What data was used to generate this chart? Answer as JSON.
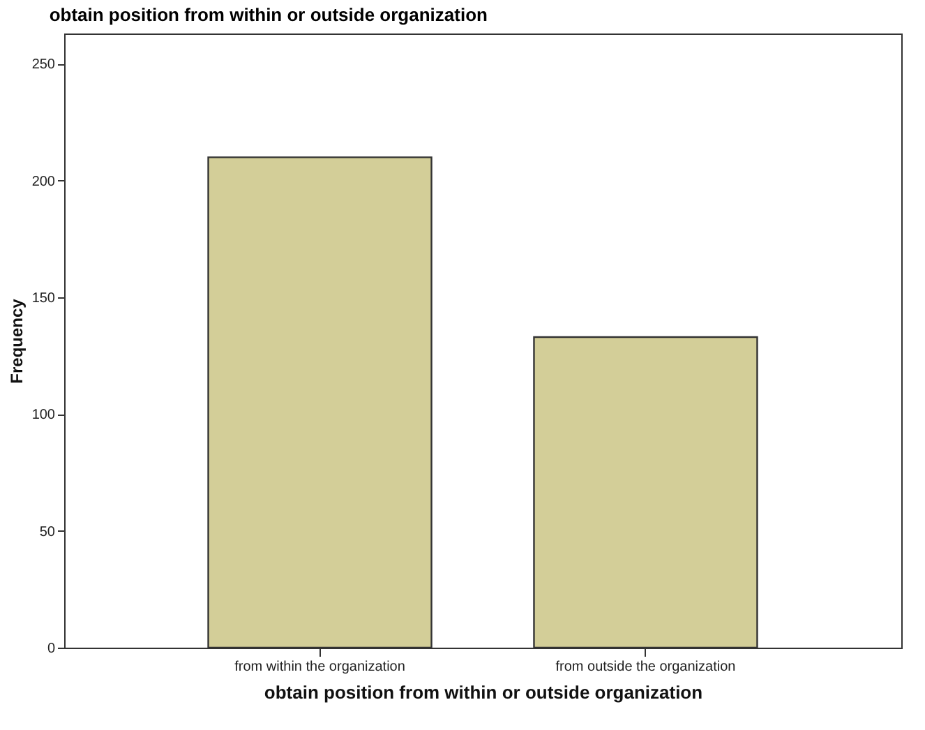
{
  "chart_data": {
    "type": "bar",
    "title": "obtain position from within or outside organization",
    "xlabel": "obtain position from within or outside organization",
    "ylabel": "Frequency",
    "categories": [
      "from within the organization",
      "from outside the organization"
    ],
    "values": [
      210,
      133
    ],
    "color": "#d3ce98",
    "ylim": [
      0,
      263
    ],
    "yticks": [
      0,
      50,
      100,
      150,
      200,
      250
    ],
    "grid": false
  }
}
